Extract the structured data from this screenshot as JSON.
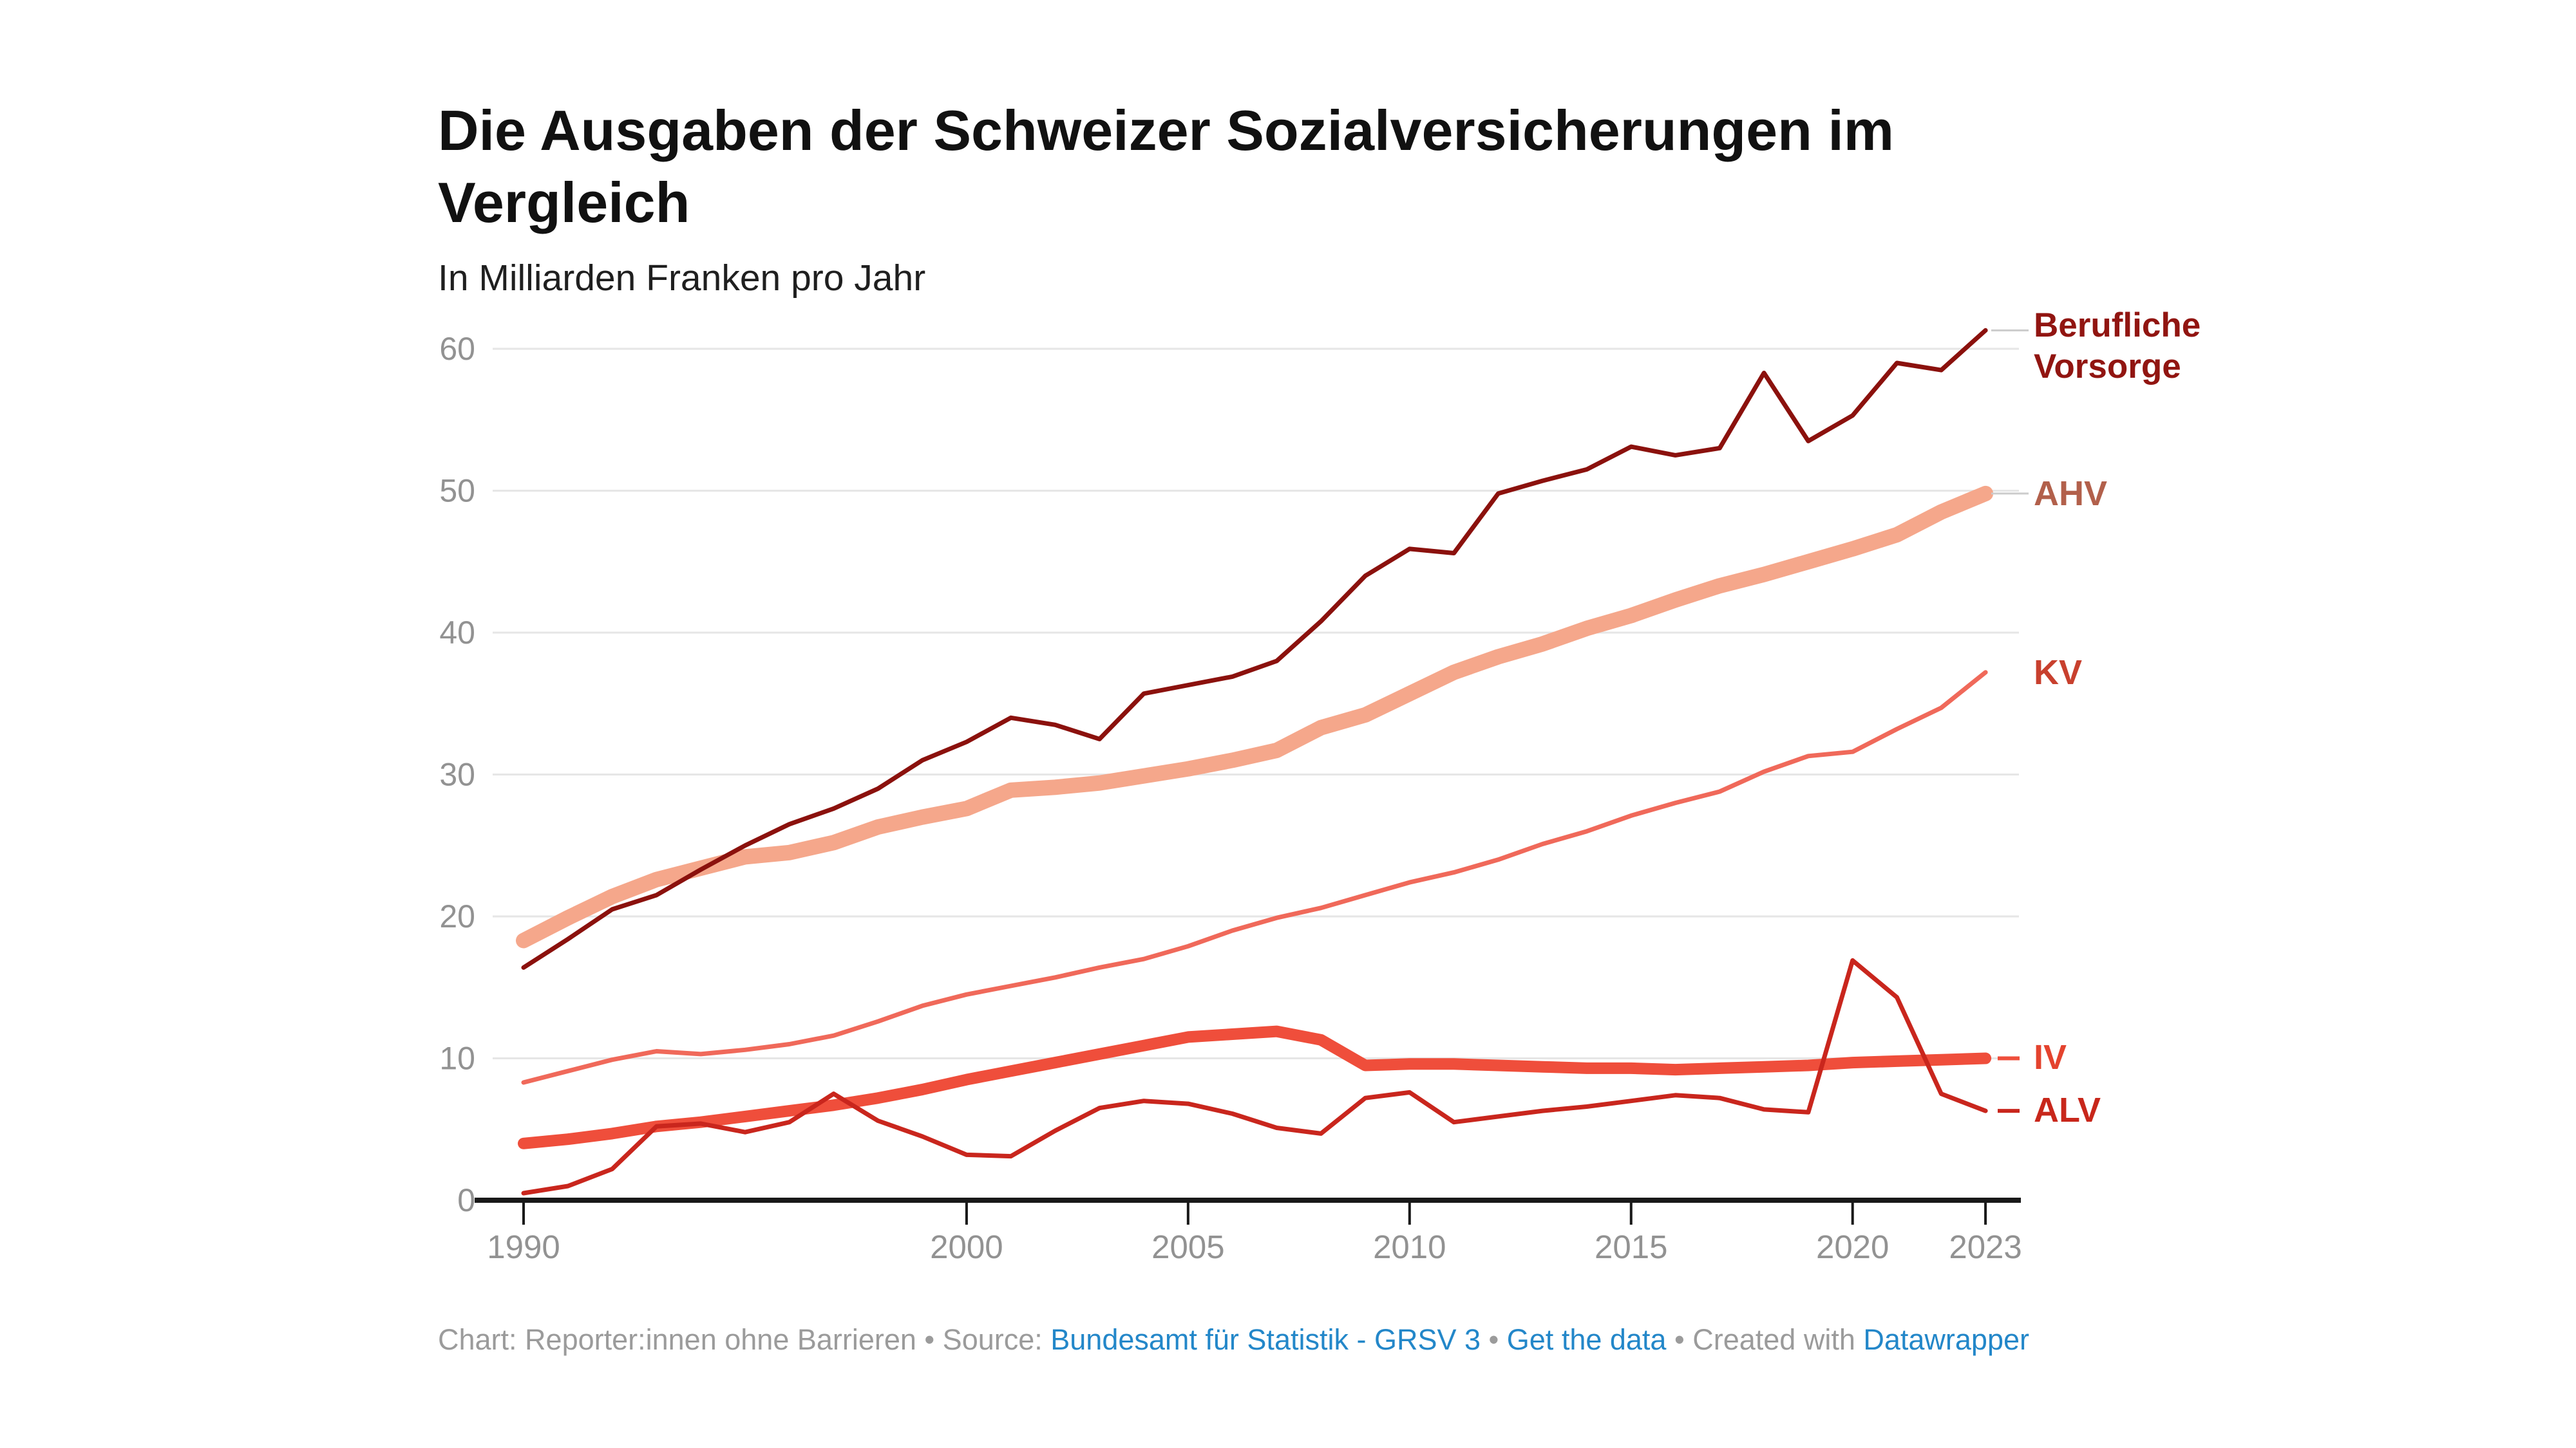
{
  "header": {
    "title": "Die Ausgaben der Schweizer Sozialversicherungen im Vergleich",
    "subtitle": "In Milliarden Franken pro Jahr"
  },
  "footer": {
    "prefix": "Chart: Reporter:innen ohne Barrieren • Source: ",
    "source_link": "Bundesamt für Statistik - GRSV 3",
    "sep1": " • ",
    "get_data_link": "Get the data",
    "sep2": " • Created with ",
    "tool_link": "Datawrapper"
  },
  "colors": {
    "link_blue": "#2387c9",
    "grid": "#e6e6e6",
    "axis": "#191919",
    "tick_label": "#929292",
    "leader_gray": "#cccccc",
    "background": "#ffffff"
  },
  "chart_data": {
    "type": "line",
    "title": "Die Ausgaben der Schweizer Sozialversicherungen im Vergleich",
    "subtitle": "In Milliarden Franken pro Jahr",
    "xlabel": "",
    "ylabel": "",
    "x": [
      1990,
      1991,
      1992,
      1993,
      1994,
      1995,
      1996,
      1997,
      1998,
      1999,
      2000,
      2001,
      2002,
      2003,
      2004,
      2005,
      2006,
      2007,
      2008,
      2009,
      2010,
      2011,
      2012,
      2013,
      2014,
      2015,
      2016,
      2017,
      2018,
      2019,
      2020,
      2021,
      2022,
      2023
    ],
    "x_tick_labels": [
      "1990",
      "2000",
      "2005",
      "2010",
      "2015",
      "2020",
      "2023"
    ],
    "x_tick_years": [
      1990,
      2000,
      2005,
      2010,
      2015,
      2020,
      2023
    ],
    "y_ticks": [
      0,
      10,
      20,
      30,
      40,
      50,
      60
    ],
    "ylim": [
      0,
      63
    ],
    "grid": "horizontal",
    "legend_position": "right-edge-labels",
    "series": [
      {
        "name": "kv",
        "label": "KV",
        "line_color": "#f0695a",
        "label_color": "#c8402e",
        "stroke_width": 7,
        "values": [
          8.3,
          9.1,
          9.9,
          10.5,
          10.3,
          10.6,
          11.0,
          11.6,
          12.6,
          13.7,
          14.5,
          15.1,
          15.7,
          16.4,
          17.0,
          17.9,
          19.0,
          19.9,
          20.6,
          21.5,
          22.4,
          23.1,
          24.0,
          25.1,
          26.0,
          27.1,
          28.0,
          28.8,
          30.2,
          31.3,
          31.6,
          33.2,
          34.7,
          37.2
        ]
      },
      {
        "name": "ahv",
        "label": "AHV",
        "line_color": "#f5a78b",
        "label_color": "#b2604b",
        "stroke_width": 24,
        "values": [
          18.3,
          19.9,
          21.4,
          22.6,
          23.4,
          24.2,
          24.5,
          25.2,
          26.3,
          27.0,
          27.6,
          28.9,
          29.1,
          29.4,
          29.9,
          30.4,
          31.0,
          31.7,
          33.3,
          34.2,
          35.7,
          37.2,
          38.3,
          39.2,
          40.3,
          41.2,
          42.3,
          43.3,
          44.1,
          45.0,
          45.9,
          46.9,
          48.5,
          49.8
        ]
      },
      {
        "name": "berufliche-vorsorge",
        "label": "Berufliche Vorsorge",
        "line_color": "#8b110d",
        "label_color": "#911511",
        "stroke_width": 7,
        "values": [
          16.4,
          18.4,
          20.5,
          21.5,
          23.3,
          25.0,
          26.5,
          27.6,
          29.0,
          31.0,
          32.3,
          34.0,
          33.5,
          32.5,
          35.7,
          36.3,
          36.9,
          38.0,
          40.8,
          44.0,
          45.9,
          45.6,
          49.8,
          50.7,
          51.5,
          53.1,
          52.5,
          53.0,
          58.3,
          53.5,
          55.3,
          59.0,
          58.5,
          61.3
        ]
      },
      {
        "name": "iv",
        "label": "IV",
        "line_color": "#ef4e3b",
        "label_color": "#e4432e",
        "stroke_width": 18,
        "values": [
          4.0,
          4.3,
          4.7,
          5.2,
          5.5,
          5.9,
          6.3,
          6.7,
          7.2,
          7.8,
          8.5,
          9.1,
          9.7,
          10.3,
          10.9,
          11.5,
          11.7,
          11.9,
          11.3,
          9.5,
          9.6,
          9.6,
          9.5,
          9.4,
          9.3,
          9.3,
          9.2,
          9.3,
          9.4,
          9.5,
          9.7,
          9.8,
          9.9,
          10.0
        ]
      },
      {
        "name": "alv",
        "label": "ALV",
        "line_color": "#c9261d",
        "label_color": "#c8271b",
        "stroke_width": 7,
        "values": [
          0.5,
          1.0,
          2.2,
          5.2,
          5.4,
          4.8,
          5.5,
          7.5,
          5.6,
          4.5,
          3.2,
          3.1,
          4.9,
          6.5,
          7.0,
          6.8,
          6.1,
          5.1,
          4.7,
          7.2,
          7.6,
          5.5,
          5.9,
          6.3,
          6.6,
          7.0,
          7.4,
          7.2,
          6.4,
          6.2,
          16.9,
          14.3,
          7.5,
          6.3
        ]
      }
    ]
  }
}
